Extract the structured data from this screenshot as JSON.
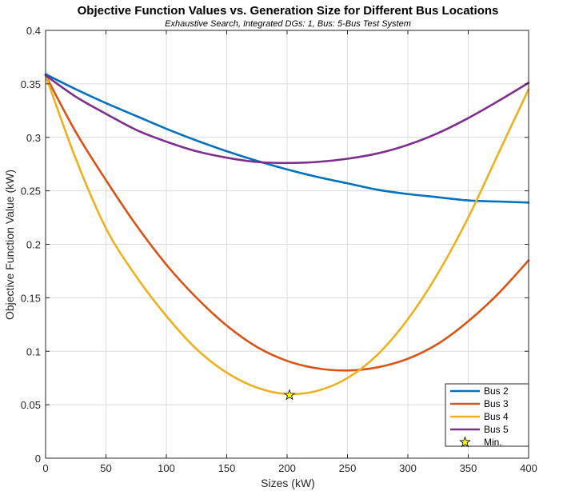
{
  "chart_data": {
    "type": "line",
    "title": "Objective Function Values vs. Generation Size for Different Bus Locations",
    "subtitle": "Exhaustive Search, Integrated DGs: 1, Bus: 5-Bus Test System",
    "xlabel": "Sizes (kW)",
    "ylabel": "Objective Function Value (kW)",
    "xlim": [
      0,
      400
    ],
    "ylim": [
      0,
      0.4
    ],
    "xticks": [
      0,
      50,
      100,
      150,
      200,
      250,
      300,
      350,
      400
    ],
    "yticks": [
      0,
      0.05,
      0.1,
      0.15,
      0.2,
      0.25,
      0.3,
      0.35,
      0.4
    ],
    "xtick_labels": [
      "0",
      "50",
      "100",
      "150",
      "200",
      "250",
      "300",
      "350",
      "400"
    ],
    "ytick_labels": [
      "0",
      "0.05",
      "0.1",
      "0.15",
      "0.2",
      "0.25",
      "0.3",
      "0.35",
      "0.4"
    ],
    "grid": true,
    "legend_position": "bottom-right",
    "series": [
      {
        "name": "Bus 2",
        "color": "#0072BD",
        "x": [
          0,
          25,
          50,
          75,
          100,
          125,
          150,
          175,
          200,
          225,
          250,
          275,
          300,
          325,
          350,
          375,
          400
        ],
        "y": [
          0.359,
          0.345,
          0.332,
          0.32,
          0.308,
          0.297,
          0.287,
          0.278,
          0.27,
          0.263,
          0.257,
          0.251,
          0.247,
          0.244,
          0.241,
          0.24,
          0.239
        ]
      },
      {
        "name": "Bus 3",
        "color": "#D95319",
        "x": [
          0,
          25,
          50,
          75,
          100,
          125,
          150,
          175,
          200,
          225,
          250,
          275,
          300,
          325,
          350,
          375,
          400
        ],
        "y": [
          0.358,
          0.305,
          0.26,
          0.218,
          0.181,
          0.15,
          0.124,
          0.104,
          0.091,
          0.084,
          0.082,
          0.085,
          0.093,
          0.107,
          0.128,
          0.154,
          0.185
        ]
      },
      {
        "name": "Bus 4",
        "color": "#EDB120",
        "x": [
          0,
          25,
          50,
          75,
          100,
          125,
          150,
          175,
          200,
          225,
          250,
          275,
          300,
          325,
          350,
          375,
          400
        ],
        "y": [
          0.358,
          0.28,
          0.215,
          0.17,
          0.133,
          0.102,
          0.08,
          0.066,
          0.06,
          0.063,
          0.075,
          0.097,
          0.13,
          0.173,
          0.225,
          0.285,
          0.345
        ]
      },
      {
        "name": "Bus 5",
        "color": "#7E2F8E",
        "x": [
          0,
          25,
          50,
          75,
          100,
          125,
          150,
          175,
          200,
          225,
          250,
          275,
          300,
          325,
          350,
          375,
          400
        ],
        "y": [
          0.358,
          0.338,
          0.322,
          0.307,
          0.296,
          0.287,
          0.281,
          0.277,
          0.276,
          0.277,
          0.28,
          0.285,
          0.293,
          0.304,
          0.318,
          0.334,
          0.351
        ]
      }
    ],
    "marker": {
      "name": "Min.",
      "symbol": "star",
      "x": 202,
      "y": 0.059,
      "fill": "#FFFF00"
    }
  }
}
